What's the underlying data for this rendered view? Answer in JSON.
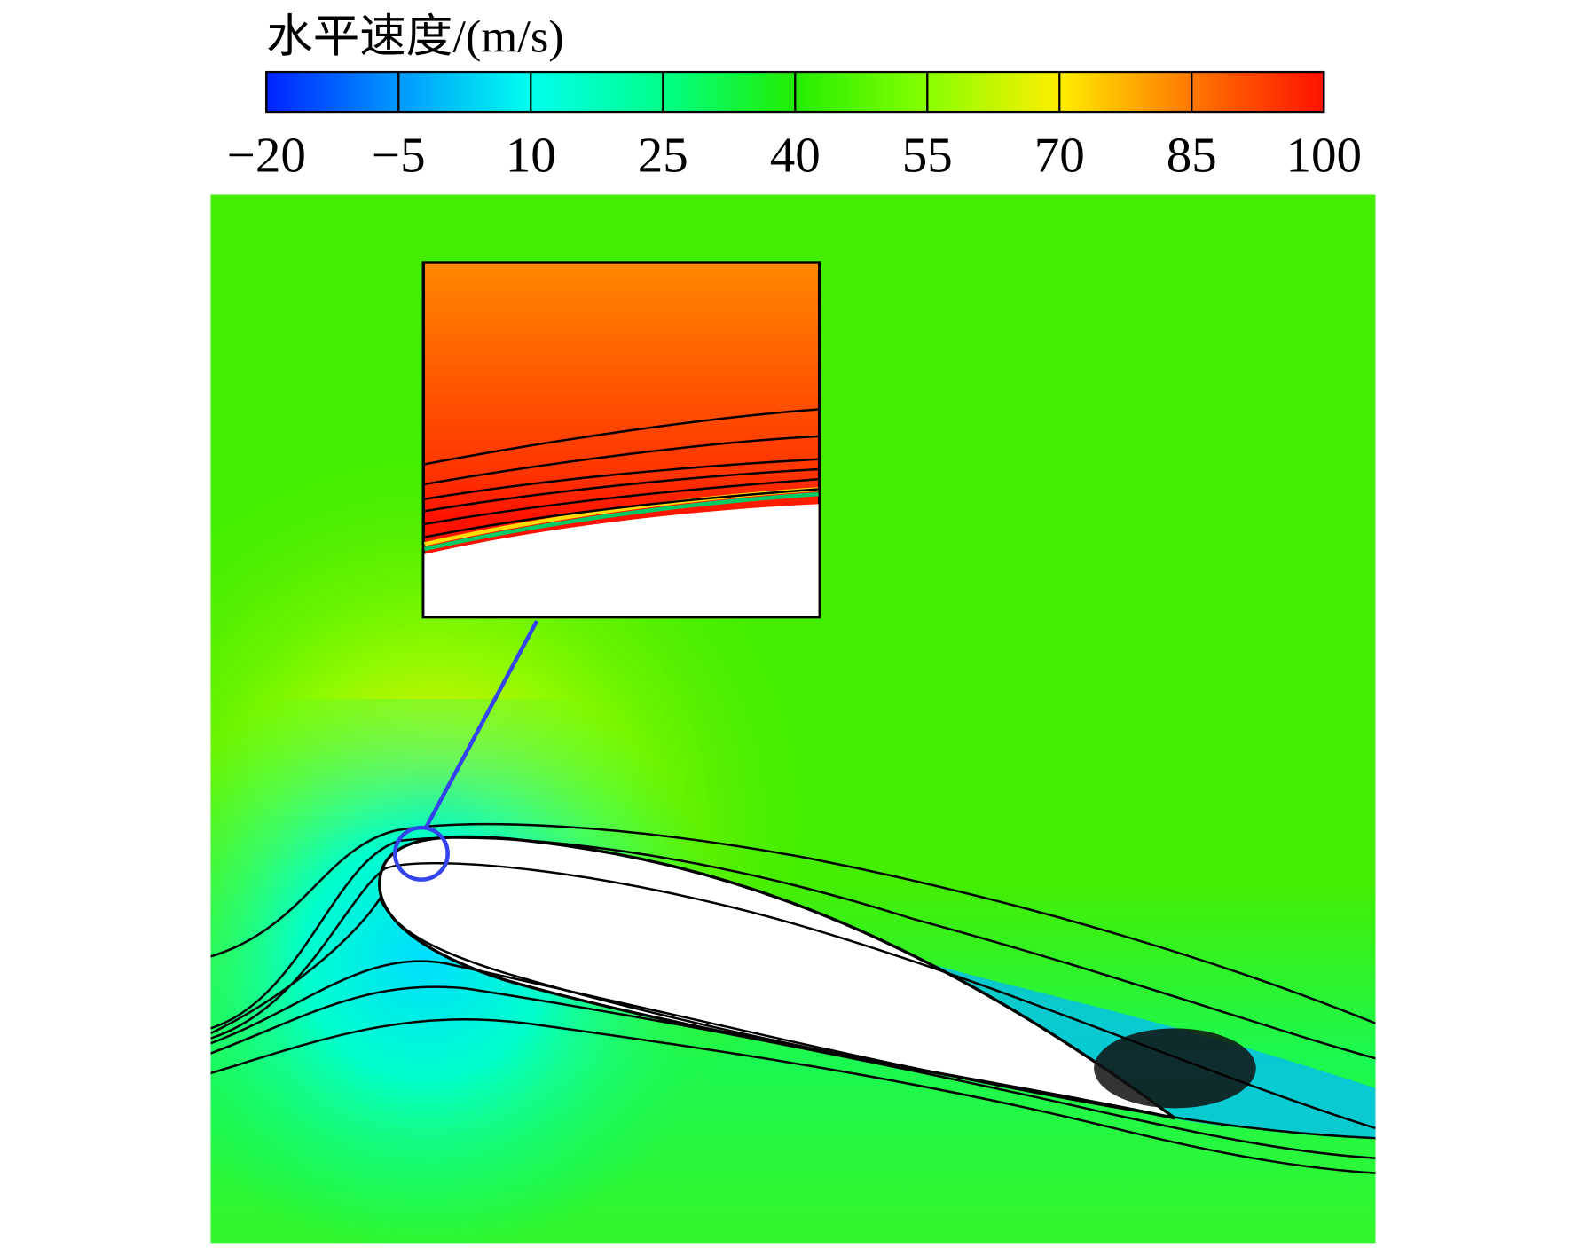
{
  "chart_data": {
    "type": "contour",
    "colorbar": {
      "title": "水平速度/(m/s)",
      "lim": [
        -20,
        100
      ],
      "ticks": [
        {
          "value": -20,
          "label": "−20"
        },
        {
          "value": -5,
          "label": "−5"
        },
        10,
        25,
        40,
        55,
        70,
        85,
        100
      ],
      "colors": [
        "#0022ff",
        "#0099ff",
        "#00ffee",
        "#00ff88",
        "#22ee00",
        "#88ff00",
        "#ffee00",
        "#ff7700",
        "#ff1100"
      ]
    }
  }
}
